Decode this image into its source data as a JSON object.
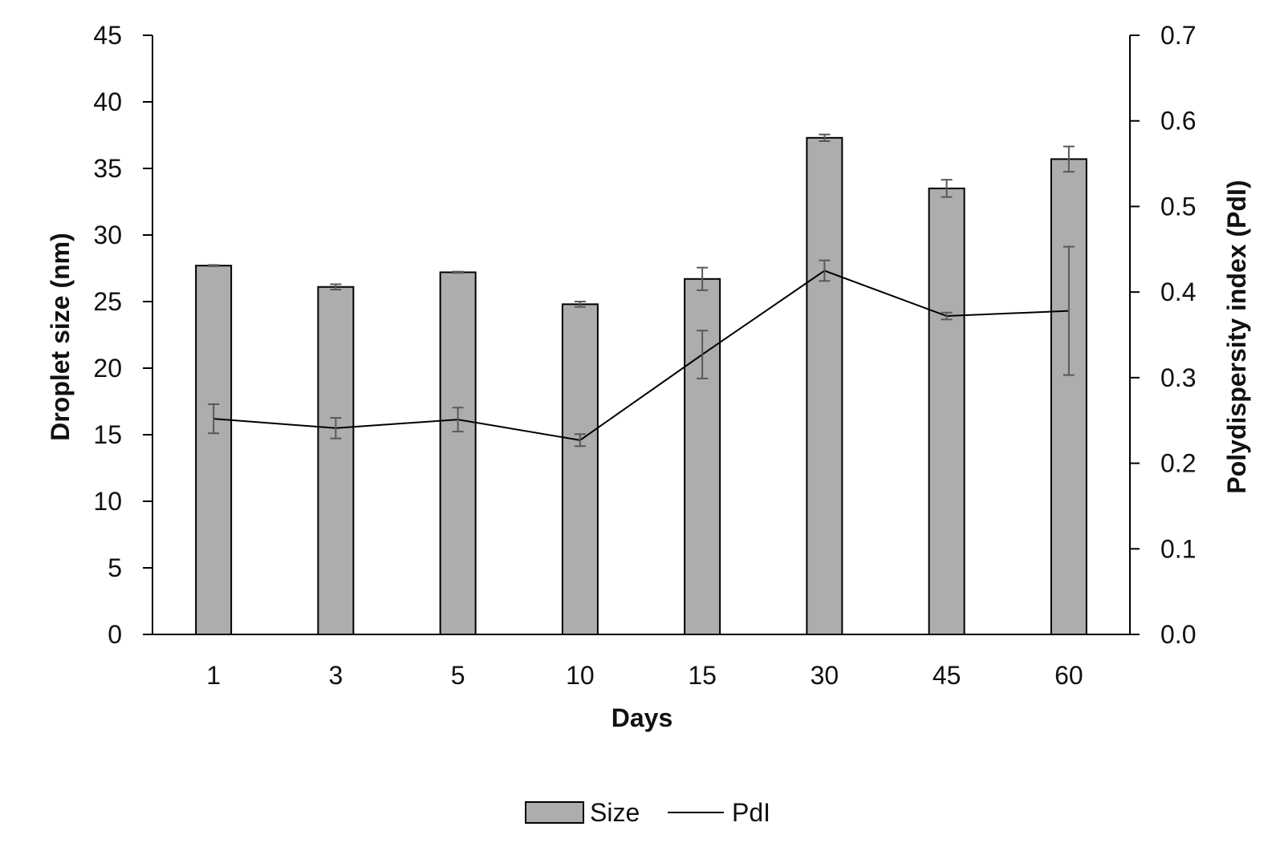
{
  "chart_data": {
    "type": "bar",
    "categories": [
      "1",
      "3",
      "5",
      "10",
      "15",
      "30",
      "45",
      "60"
    ],
    "xlabel": "Days",
    "ylabel": "Droplet size (nm)",
    "y2label": "Polydispersity index (PdI)",
    "ylim": [
      0,
      45
    ],
    "y2lim": [
      0.0,
      0.7
    ],
    "yticks": [
      "0",
      "5",
      "10",
      "15",
      "20",
      "25",
      "30",
      "35",
      "40",
      "45"
    ],
    "y2ticks": [
      "0.0",
      "0.1",
      "0.2",
      "0.3",
      "0.4",
      "0.5",
      "0.6",
      "0.7"
    ],
    "grid": false,
    "legend_position": "bottom",
    "series": [
      {
        "name": "Size",
        "type": "bar",
        "axis": "left",
        "values": [
          27.7,
          26.1,
          27.2,
          24.8,
          26.7,
          37.3,
          33.5,
          35.7
        ],
        "errors": [
          0.05,
          0.2,
          0.05,
          0.2,
          0.85,
          0.25,
          0.65,
          0.95
        ]
      },
      {
        "name": "PdI",
        "type": "line",
        "axis": "right",
        "values": [
          0.252,
          0.241,
          0.251,
          0.227,
          0.327,
          0.425,
          0.372,
          0.378
        ],
        "errors": [
          0.017,
          0.012,
          0.014,
          0.007,
          0.028,
          0.012,
          0.004,
          0.075
        ]
      }
    ],
    "colors": {
      "bar_fill": "#adadad",
      "bar_stroke": "#000000",
      "line": "#000000",
      "error_bar": "#595959",
      "axis": "#000000"
    }
  }
}
